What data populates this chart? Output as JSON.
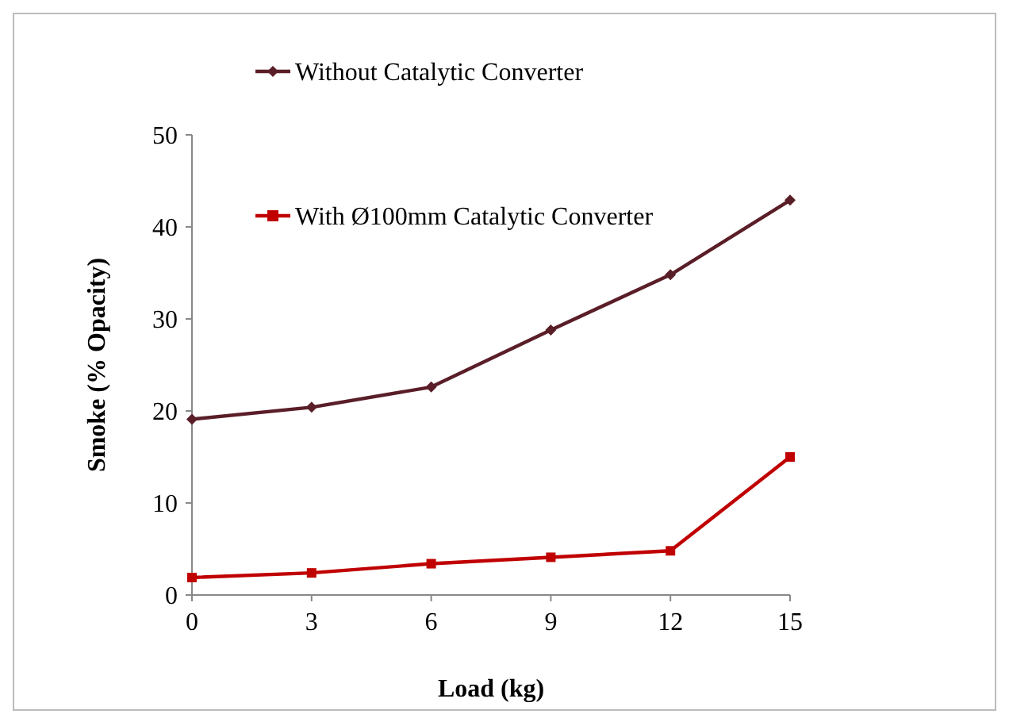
{
  "chart_data": {
    "type": "line",
    "xlabel": "Load (kg)",
    "ylabel": "Smoke (% Opacity)",
    "x": [
      0,
      3,
      6,
      9,
      12,
      15
    ],
    "xlim": [
      0,
      15
    ],
    "xticks": [
      0,
      3,
      6,
      9,
      12,
      15
    ],
    "ylim": [
      0,
      50
    ],
    "yticks": [
      0,
      10,
      20,
      30,
      40,
      50
    ],
    "grid": false,
    "legend": "top left",
    "series": [
      {
        "name": "Without Catalytic Converter",
        "color": "#5a1e28",
        "marker": "diamond",
        "values": [
          19.1,
          20.4,
          22.6,
          28.8,
          34.8,
          42.9
        ]
      },
      {
        "name": "With Ø100mm Catalytic Converter",
        "color": "#c00000",
        "marker": "square",
        "values": [
          1.9,
          2.4,
          3.4,
          4.1,
          4.8,
          15
        ]
      }
    ]
  }
}
